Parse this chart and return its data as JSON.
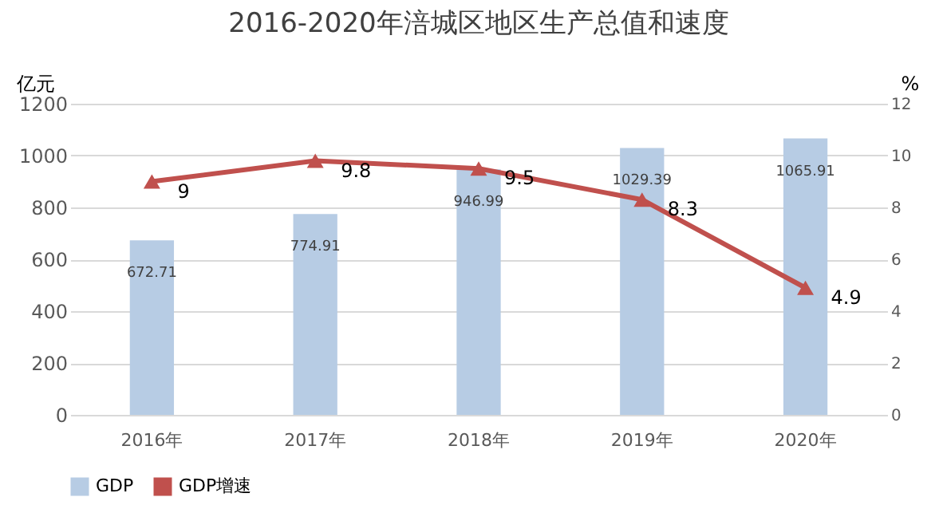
{
  "chart_data": {
    "type": "bar",
    "title": "2016-2020年涪城区地区生产总值和速度",
    "ylabel": "亿元",
    "y2label": "%",
    "categories": [
      "2016年",
      "2017年",
      "2018年",
      "2019年",
      "2020年"
    ],
    "series": [
      {
        "name": "GDP",
        "color": "#b7cce4",
        "values": [
          672.71,
          774.91,
          946.99,
          1029.39,
          1065.91
        ]
      },
      {
        "name": "GDP增速",
        "type": "line",
        "axis": "y2",
        "color": "#c0504d",
        "values": [
          9,
          9.8,
          9.5,
          8.3,
          4.9
        ]
      }
    ],
    "ylim": [
      0,
      1200
    ],
    "yticks": [
      0,
      200,
      400,
      600,
      800,
      1000,
      1200
    ],
    "y2lim": [
      0,
      12
    ],
    "y2ticks": [
      0,
      2,
      4,
      6,
      8,
      10,
      12
    ],
    "grid": "y",
    "legend": "bottom",
    "marker": "triangle",
    "line_style": "solid",
    "data_labels": true
  }
}
